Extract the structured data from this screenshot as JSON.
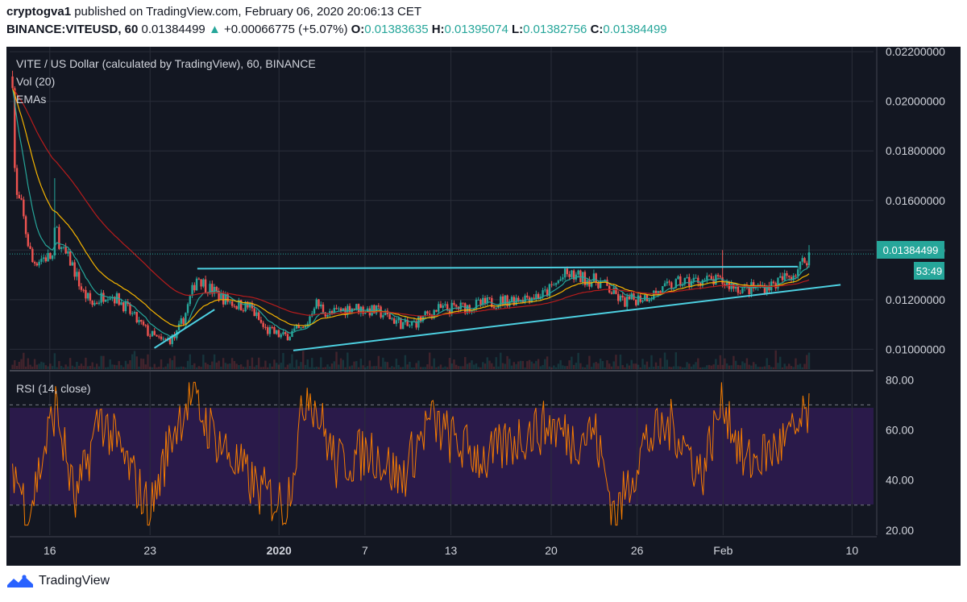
{
  "header": {
    "author": "cryptogva1",
    "published_text": "published on TradingView.com, February 06, 2020 20:06:13 CET",
    "symbol": "BINANCE:VITEUSD, 60",
    "last": "0.01384499",
    "change": "+0.00066775 (+5.07%)",
    "ohlc": [
      {
        "label": "O:",
        "value": "0.01383635"
      },
      {
        "label": "H:",
        "value": "0.01395074"
      },
      {
        "label": "L:",
        "value": "0.01382756"
      },
      {
        "label": "C:",
        "value": "0.01384499"
      }
    ]
  },
  "legend": {
    "title": "VITE / US Dollar (calculated by TradingView), 60, BINANCE",
    "vol": "Vol (20)",
    "emas": "EMAs",
    "rsi": "RSI (14, close)"
  },
  "price_badge": "0.01384499",
  "timer_badge": "53:49",
  "footer": {
    "brand": "TradingView"
  },
  "colors": {
    "background": "#131722",
    "up": "#26a69a",
    "down": "#ef5350",
    "trendline": "#4dd0e1",
    "rsi_line": "#f57c00",
    "rsi_band": "#2a1a4a",
    "badge_bg": "#26a69a"
  },
  "chart_data": [
    {
      "type": "candlestick",
      "title": "VITE / US Dollar (calculated by TradingView), 60, BINANCE",
      "ylim": [
        0.0092,
        0.0222
      ],
      "y_ticks": [
        "0.02200000",
        "0.02000000",
        "0.01800000",
        "0.01600000",
        "0.01400000",
        "0.01200000",
        "0.01000000"
      ],
      "x_ticks": [
        {
          "label": "16",
          "day": 0
        },
        {
          "label": "23",
          "day": 7
        },
        {
          "label": "2020",
          "day": 16
        },
        {
          "label": "7",
          "day": 22
        },
        {
          "label": "13",
          "day": 28
        },
        {
          "label": "20",
          "day": 35
        },
        {
          "label": "26",
          "day": 41
        },
        {
          "label": "Feb",
          "day": 47
        },
        {
          "label": "10",
          "day": 56
        }
      ],
      "x_range_days": [
        -2.8,
        57.5
      ],
      "close_path": [
        {
          "day": -2.6,
          "price": 0.021
        },
        {
          "day": -2.4,
          "price": 0.0162
        },
        {
          "day": -2.0,
          "price": 0.0158
        },
        {
          "day": -1.6,
          "price": 0.0145
        },
        {
          "day": -1.2,
          "price": 0.0135
        },
        {
          "day": -0.5,
          "price": 0.0137
        },
        {
          "day": 0.2,
          "price": 0.0137
        },
        {
          "day": 0.4,
          "price": 0.015
        },
        {
          "day": 0.8,
          "price": 0.014
        },
        {
          "day": 1.5,
          "price": 0.0135
        },
        {
          "day": 2.3,
          "price": 0.0123
        },
        {
          "day": 3.0,
          "price": 0.0118
        },
        {
          "day": 4.0,
          "price": 0.0123
        },
        {
          "day": 5.0,
          "price": 0.0119
        },
        {
          "day": 6.0,
          "price": 0.0112
        },
        {
          "day": 7.0,
          "price": 0.0106
        },
        {
          "day": 7.8,
          "price": 0.0103
        },
        {
          "day": 8.8,
          "price": 0.0105
        },
        {
          "day": 9.5,
          "price": 0.0115
        },
        {
          "day": 10.3,
          "price": 0.013
        },
        {
          "day": 10.8,
          "price": 0.0126
        },
        {
          "day": 12.0,
          "price": 0.0121
        },
        {
          "day": 13.0,
          "price": 0.0118
        },
        {
          "day": 14.0,
          "price": 0.0117
        },
        {
          "day": 15.0,
          "price": 0.0108
        },
        {
          "day": 16.3,
          "price": 0.0105
        },
        {
          "day": 17.0,
          "price": 0.0107
        },
        {
          "day": 17.8,
          "price": 0.0108
        },
        {
          "day": 18.5,
          "price": 0.0119
        },
        {
          "day": 19.5,
          "price": 0.0114
        },
        {
          "day": 21.0,
          "price": 0.0117
        },
        {
          "day": 23.0,
          "price": 0.0115
        },
        {
          "day": 25.0,
          "price": 0.0109
        },
        {
          "day": 27.0,
          "price": 0.0116
        },
        {
          "day": 29.0,
          "price": 0.0117
        },
        {
          "day": 31.0,
          "price": 0.0119
        },
        {
          "day": 33.0,
          "price": 0.0121
        },
        {
          "day": 34.5,
          "price": 0.0122
        },
        {
          "day": 36.0,
          "price": 0.013
        },
        {
          "day": 37.0,
          "price": 0.0129
        },
        {
          "day": 38.5,
          "price": 0.0127
        },
        {
          "day": 40.0,
          "price": 0.0119
        },
        {
          "day": 42.0,
          "price": 0.0122
        },
        {
          "day": 44.0,
          "price": 0.0127
        },
        {
          "day": 45.5,
          "price": 0.0128
        },
        {
          "day": 47.0,
          "price": 0.0127
        },
        {
          "day": 48.5,
          "price": 0.0124
        },
        {
          "day": 50.5,
          "price": 0.0126
        },
        {
          "day": 52.0,
          "price": 0.0131
        },
        {
          "day": 53.0,
          "price": 0.0138
        }
      ],
      "spikes": [
        {
          "day": -2.6,
          "high": 0.021
        },
        {
          "day": 0.4,
          "high": 0.0169
        },
        {
          "day": 47.0,
          "high": 0.014
        },
        {
          "day": 53.0,
          "high": 0.0142
        }
      ],
      "trendlines": [
        {
          "from": {
            "day": 10.3,
            "price": 0.01325
          },
          "to": {
            "day": 52.2,
            "price": 0.01333
          }
        },
        {
          "from": {
            "day": 7.3,
            "price": 0.01005
          },
          "to": {
            "day": 11.5,
            "price": 0.0116
          }
        },
        {
          "from": {
            "day": 17.0,
            "price": 0.00995
          },
          "to": {
            "day": 55.2,
            "price": 0.0126
          }
        }
      ]
    },
    {
      "type": "line",
      "title": "RSI (14, close)",
      "ylim": [
        18,
        83
      ],
      "y_ticks": [
        "80.00",
        "60.00",
        "40.00",
        "20.00"
      ],
      "band": [
        30,
        70
      ],
      "rsi_anchor": [
        {
          "day": -2.6,
          "value": 47
        },
        {
          "day": -1.5,
          "value": 26
        },
        {
          "day": 0.4,
          "value": 70
        },
        {
          "day": 1.8,
          "value": 30
        },
        {
          "day": 3.5,
          "value": 66
        },
        {
          "day": 5.5,
          "value": 45
        },
        {
          "day": 7.0,
          "value": 27
        },
        {
          "day": 8.5,
          "value": 58
        },
        {
          "day": 9.8,
          "value": 74
        },
        {
          "day": 11.0,
          "value": 62
        },
        {
          "day": 12.5,
          "value": 50
        },
        {
          "day": 14.5,
          "value": 36
        },
        {
          "day": 16.5,
          "value": 30
        },
        {
          "day": 18.0,
          "value": 78
        },
        {
          "day": 20.0,
          "value": 46
        },
        {
          "day": 22.5,
          "value": 52
        },
        {
          "day": 24.5,
          "value": 40
        },
        {
          "day": 26.5,
          "value": 64
        },
        {
          "day": 28.5,
          "value": 54
        },
        {
          "day": 30.5,
          "value": 48
        },
        {
          "day": 33.0,
          "value": 58
        },
        {
          "day": 35.0,
          "value": 62
        },
        {
          "day": 36.5,
          "value": 56
        },
        {
          "day": 38.0,
          "value": 60
        },
        {
          "day": 39.5,
          "value": 25
        },
        {
          "day": 41.5,
          "value": 55
        },
        {
          "day": 43.5,
          "value": 62
        },
        {
          "day": 45.5,
          "value": 42
        },
        {
          "day": 47.0,
          "value": 73
        },
        {
          "day": 48.5,
          "value": 46
        },
        {
          "day": 50.5,
          "value": 52
        },
        {
          "day": 52.0,
          "value": 58
        },
        {
          "day": 53.0,
          "value": 67
        }
      ]
    }
  ]
}
